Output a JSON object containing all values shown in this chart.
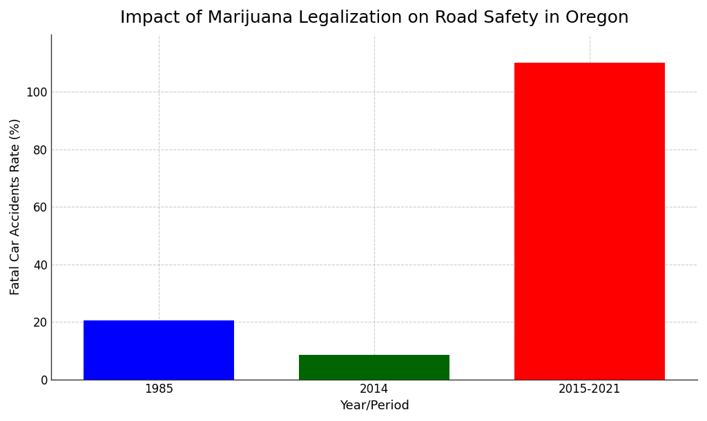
{
  "title": "Impact of Marijuana Legalization on Road Safety in Oregon",
  "xlabel": "Year/Period",
  "ylabel": "Fatal Car Accidents Rate (%)",
  "categories": [
    "1985",
    "2014",
    "2015-2021"
  ],
  "values": [
    20.5,
    8.5,
    110
  ],
  "bar_colors": [
    "#0000ff",
    "#006400",
    "#ff0000"
  ],
  "ylim": [
    0,
    120
  ],
  "yticks": [
    0,
    20,
    40,
    60,
    80,
    100
  ],
  "bar_width": 0.7,
  "background_color": "#ffffff",
  "title_fontsize": 18,
  "axis_label_fontsize": 13,
  "tick_fontsize": 12,
  "grid_color": "#aaaaaa",
  "grid_style": "--",
  "grid_alpha": 0.6,
  "spine_color": "#333333"
}
